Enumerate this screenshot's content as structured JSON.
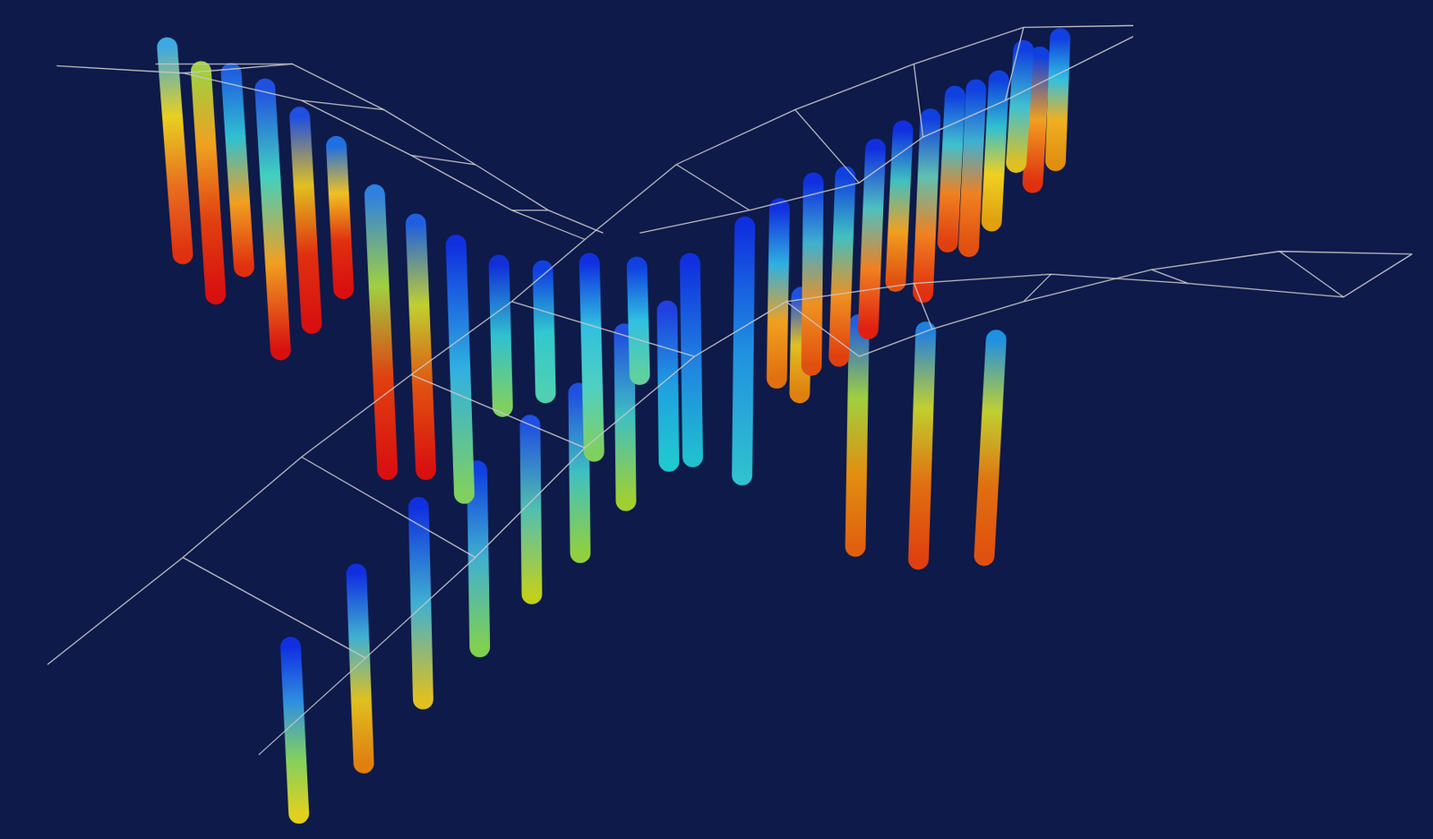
{
  "chart_data": {
    "type": "line",
    "grid": false,
    "tick_labels": false,
    "xlim": [
      0,
      1568
    ],
    "ylim": [
      0,
      918
    ],
    "series": [
      {
        "color": "#c8c8c8",
        "line_style": "solid",
        "x": [
          62,
          200,
          330,
          450,
          560,
          640
        ],
        "values": [
          846,
          838,
          808,
          748,
          688,
          656
        ]
      },
      {
        "color": "#c8c8c8",
        "line_style": "solid",
        "x": [
          170,
          320,
          420,
          520,
          600,
          660
        ],
        "values": [
          848,
          848,
          798,
          738,
          688,
          663
        ]
      },
      {
        "color": "#c8c8c8",
        "line_style": "solid",
        "x": [
          200,
          320
        ],
        "values": [
          838,
          848
        ]
      },
      {
        "color": "#c8c8c8",
        "line_style": "solid",
        "x": [
          330,
          420
        ],
        "values": [
          808,
          798
        ]
      },
      {
        "color": "#c8c8c8",
        "line_style": "solid",
        "x": [
          450,
          520
        ],
        "values": [
          748,
          738
        ]
      },
      {
        "color": "#c8c8c8",
        "line_style": "solid",
        "x": [
          560,
          600
        ],
        "values": [
          688,
          688
        ]
      },
      {
        "color": "#c8c8c8",
        "line_style": "solid",
        "x": [
          52,
          200,
          330,
          450,
          560,
          640
        ],
        "values": [
          191,
          308,
          418,
          508,
          588,
          656
        ]
      },
      {
        "color": "#c8c8c8",
        "line_style": "solid",
        "x": [
          283,
          400,
          520,
          640,
          760,
          860,
          940
        ],
        "values": [
          92,
          198,
          308,
          428,
          528,
          588,
          528
        ]
      },
      {
        "color": "#c8c8c8",
        "line_style": "solid",
        "x": [
          200,
          400
        ],
        "values": [
          308,
          198
        ]
      },
      {
        "color": "#c8c8c8",
        "line_style": "solid",
        "x": [
          330,
          520
        ],
        "values": [
          418,
          308
        ]
      },
      {
        "color": "#c8c8c8",
        "line_style": "solid",
        "x": [
          450,
          640
        ],
        "values": [
          508,
          428
        ]
      },
      {
        "color": "#c8c8c8",
        "line_style": "solid",
        "x": [
          560,
          760
        ],
        "values": [
          588,
          528
        ]
      },
      {
        "color": "#c8c8c8",
        "line_style": "solid",
        "x": [
          640,
          740,
          870,
          1000,
          1120,
          1240
        ],
        "values": [
          656,
          738,
          798,
          848,
          888,
          890
        ]
      },
      {
        "color": "#c8c8c8",
        "line_style": "solid",
        "x": [
          700,
          820,
          940,
          1010,
          1100,
          1240
        ],
        "values": [
          663,
          688,
          718,
          768,
          808,
          878
        ]
      },
      {
        "color": "#c8c8c8",
        "line_style": "solid",
        "x": [
          740,
          820
        ],
        "values": [
          738,
          688
        ]
      },
      {
        "color": "#c8c8c8",
        "line_style": "solid",
        "x": [
          870,
          940
        ],
        "values": [
          798,
          718
        ]
      },
      {
        "color": "#c8c8c8",
        "line_style": "solid",
        "x": [
          1000,
          1010
        ],
        "values": [
          848,
          768
        ]
      },
      {
        "color": "#c8c8c8",
        "line_style": "solid",
        "x": [
          1120,
          1100
        ],
        "values": [
          888,
          808
        ]
      },
      {
        "color": "#c8c8c8",
        "line_style": "solid",
        "x": [
          940,
          1020,
          1120,
          1260,
          1400,
          1545
        ],
        "values": [
          528,
          558,
          588,
          623,
          643,
          640
        ]
      },
      {
        "color": "#c8c8c8",
        "line_style": "solid",
        "x": [
          860,
          1000,
          1150,
          1300,
          1470,
          1545
        ],
        "values": [
          588,
          608,
          618,
          608,
          593,
          640
        ]
      },
      {
        "color": "#c8c8c8",
        "line_style": "solid",
        "x": [
          1020,
          1000
        ],
        "values": [
          558,
          608
        ]
      },
      {
        "color": "#c8c8c8",
        "line_style": "solid",
        "x": [
          1120,
          1150
        ],
        "values": [
          588,
          618
        ]
      },
      {
        "color": "#c8c8c8",
        "line_style": "solid",
        "x": [
          1260,
          1300
        ],
        "values": [
          623,
          608
        ]
      },
      {
        "color": "#c8c8c8",
        "line_style": "solid",
        "x": [
          1400,
          1470
        ],
        "values": [
          643,
          593
        ]
      },
      {
        "colors": [
          "#40a8e0",
          "#e8d020",
          "#e87020",
          "#e03010"
        ],
        "x": [
          183,
          200
        ],
        "values": [
          866,
          640
        ]
      },
      {
        "colors": [
          "#a0d040",
          "#f0a020",
          "#e04010",
          "#d81010"
        ],
        "x": [
          220,
          236
        ],
        "values": [
          840,
          596
        ]
      },
      {
        "colors": [
          "#2060e0",
          "#30c0d0",
          "#f0a020",
          "#e03010"
        ],
        "x": [
          253,
          267
        ],
        "values": [
          838,
          626
        ]
      },
      {
        "colors": [
          "#2050e0",
          "#40d0c0",
          "#f0a020",
          "#d81010"
        ],
        "x": [
          290,
          307
        ],
        "values": [
          821,
          535
        ]
      },
      {
        "colors": [
          "#2050e0",
          "#e0c020",
          "#e03010",
          "#d81010"
        ],
        "x": [
          328,
          341
        ],
        "values": [
          790,
          564
        ]
      },
      {
        "colors": [
          "#2070e0",
          "#f0c020",
          "#e03010",
          "#d81010"
        ],
        "x": [
          368,
          376
        ],
        "values": [
          758,
          602
        ]
      },
      {
        "colors": [
          "#1040e0",
          "#30c0e0",
          "#f0b020",
          "#e09010"
        ],
        "x": [
          1160,
          1155
        ],
        "values": [
          876,
          742
        ]
      },
      {
        "colors": [
          "#1040e0",
          "#40c0d0",
          "#e0c020"
        ],
        "x": [
          1120,
          1112
        ],
        "values": [
          863,
          740
        ]
      },
      {
        "colors": [
          "#1040e0",
          "#f0a020",
          "#e03010"
        ],
        "x": [
          1138,
          1130
        ],
        "values": [
          856,
          718
        ]
      },
      {
        "colors": [
          "#1040e0",
          "#30c0d0",
          "#f0d020",
          "#e0a010"
        ],
        "x": [
          1093,
          1085
        ],
        "values": [
          830,
          676
        ]
      },
      {
        "colors": [
          "#1040e0",
          "#40b0d0",
          "#f08020",
          "#e05010"
        ],
        "x": [
          1068,
          1060
        ],
        "values": [
          820,
          648
        ]
      },
      {
        "colors": [
          "#1040e0",
          "#40c0d0",
          "#f08020",
          "#e04010"
        ],
        "x": [
          1045,
          1037
        ],
        "values": [
          813,
          653
        ]
      },
      {
        "colors": [
          "#1040e0",
          "#60c0b0",
          "#f08020",
          "#e03010"
        ],
        "x": [
          1018,
          1010
        ],
        "values": [
          788,
          598
        ]
      },
      {
        "colors": [
          "#1030e0",
          "#40c0c0",
          "#f0a020",
          "#e05010"
        ],
        "x": [
          988,
          980
        ],
        "values": [
          775,
          610
        ]
      },
      {
        "colors": [
          "#1030e0",
          "#50c0c0",
          "#f08020",
          "#e02010"
        ],
        "x": [
          958,
          950
        ],
        "values": [
          755,
          558
        ]
      },
      {
        "colors": [
          "#1040e0",
          "#40c0c0",
          "#f09020",
          "#e04010"
        ],
        "x": [
          925,
          918
        ],
        "values": [
          725,
          528
        ]
      },
      {
        "colors": [
          "#1030e0",
          "#40b0d0",
          "#f09020",
          "#e05010"
        ],
        "x": [
          890,
          888
        ],
        "values": [
          718,
          518
        ]
      },
      {
        "colors": [
          "#1030e0",
          "#30b0e0",
          "#f0a020",
          "#e07010"
        ],
        "x": [
          853,
          850
        ],
        "values": [
          690,
          504
        ]
      },
      {
        "colors": [
          "#2050e0",
          "#e0c020",
          "#e08010"
        ],
        "x": [
          877,
          875
        ],
        "values": [
          593,
          488
        ]
      },
      {
        "colors": [
          "#3080e0",
          "#a0d040",
          "#e04010",
          "#d81010"
        ],
        "x": [
          410,
          424
        ],
        "values": [
          705,
          404
        ]
      },
      {
        "colors": [
          "#2060e0",
          "#c0d030",
          "#e05010",
          "#d81010"
        ],
        "x": [
          455,
          466
        ],
        "values": [
          673,
          404
        ]
      },
      {
        "colors": [
          "#1030e0",
          "#30b0e0",
          "#80d060"
        ],
        "x": [
          499,
          508
        ],
        "values": [
          650,
          378
        ]
      },
      {
        "colors": [
          "#1030d8",
          "#30c0d0",
          "#80d060"
        ],
        "x": [
          546,
          550
        ],
        "values": [
          628,
          473
        ]
      },
      {
        "colors": [
          "#1040e0",
          "#30c8d0",
          "#50d0b0"
        ],
        "x": [
          594,
          597
        ],
        "values": [
          622,
          488
        ]
      },
      {
        "colors": [
          "#1030e0",
          "#30c0e0",
          "#50d0c0",
          "#80d060"
        ],
        "x": [
          645,
          650
        ],
        "values": [
          630,
          424
        ]
      },
      {
        "colors": [
          "#1040e0",
          "#30c0e0",
          "#60d0a0"
        ],
        "x": [
          697,
          700
        ],
        "values": [
          626,
          508
        ]
      },
      {
        "colors": [
          "#1030e0",
          "#2080e0",
          "#20c0d0"
        ],
        "x": [
          755,
          758
        ],
        "values": [
          630,
          418
        ]
      },
      {
        "colors": [
          "#1030e0",
          "#2090e0",
          "#30c0d0"
        ],
        "x": [
          815,
          812
        ],
        "values": [
          670,
          398
        ]
      },
      {
        "colors": [
          "#2040e0",
          "#20a0e0",
          "#20c8d0"
        ],
        "x": [
          730,
          732
        ],
        "values": [
          578,
          413
        ]
      },
      {
        "colors": [
          "#2050e0",
          "#40c0c0",
          "#a0d030"
        ],
        "x": [
          683,
          685
        ],
        "values": [
          553,
          370
        ]
      },
      {
        "colors": [
          "#2050e0",
          "#40c0c0",
          "#90d040"
        ],
        "x": [
          633,
          635
        ],
        "values": [
          488,
          313
        ]
      },
      {
        "colors": [
          "#2050e0",
          "#50c0b0",
          "#c0d020"
        ],
        "x": [
          580,
          582
        ],
        "values": [
          453,
          268
        ]
      },
      {
        "colors": [
          "#1040e0",
          "#40b0d0",
          "#80d050"
        ],
        "x": [
          522,
          525
        ],
        "values": [
          403,
          210
        ]
      },
      {
        "colors": [
          "#1030e0",
          "#40b0d0",
          "#e0c020"
        ],
        "x": [
          458,
          463
        ],
        "values": [
          363,
          153
        ]
      },
      {
        "colors": [
          "#1030e0",
          "#40b0d0",
          "#e0c020",
          "#e08010"
        ],
        "x": [
          390,
          398
        ],
        "values": [
          290,
          83
        ]
      },
      {
        "colors": [
          "#1030e0",
          "#3090e0",
          "#80d060",
          "#e0d020"
        ],
        "x": [
          318,
          327
        ],
        "values": [
          210,
          28
        ]
      },
      {
        "colors": [
          "#2060e0",
          "#a0d040",
          "#e09010",
          "#e06010"
        ],
        "x": [
          940,
          936
        ],
        "values": [
          563,
          320
        ]
      },
      {
        "colors": [
          "#2080e0",
          "#c0d030",
          "#e07010",
          "#e04010"
        ],
        "x": [
          1013,
          1005
        ],
        "values": [
          555,
          306
        ]
      },
      {
        "colors": [
          "#2090e0",
          "#c0d030",
          "#e07010",
          "#e05010"
        ],
        "x": [
          1090,
          1077
        ],
        "values": [
          546,
          310
        ]
      }
    ]
  }
}
